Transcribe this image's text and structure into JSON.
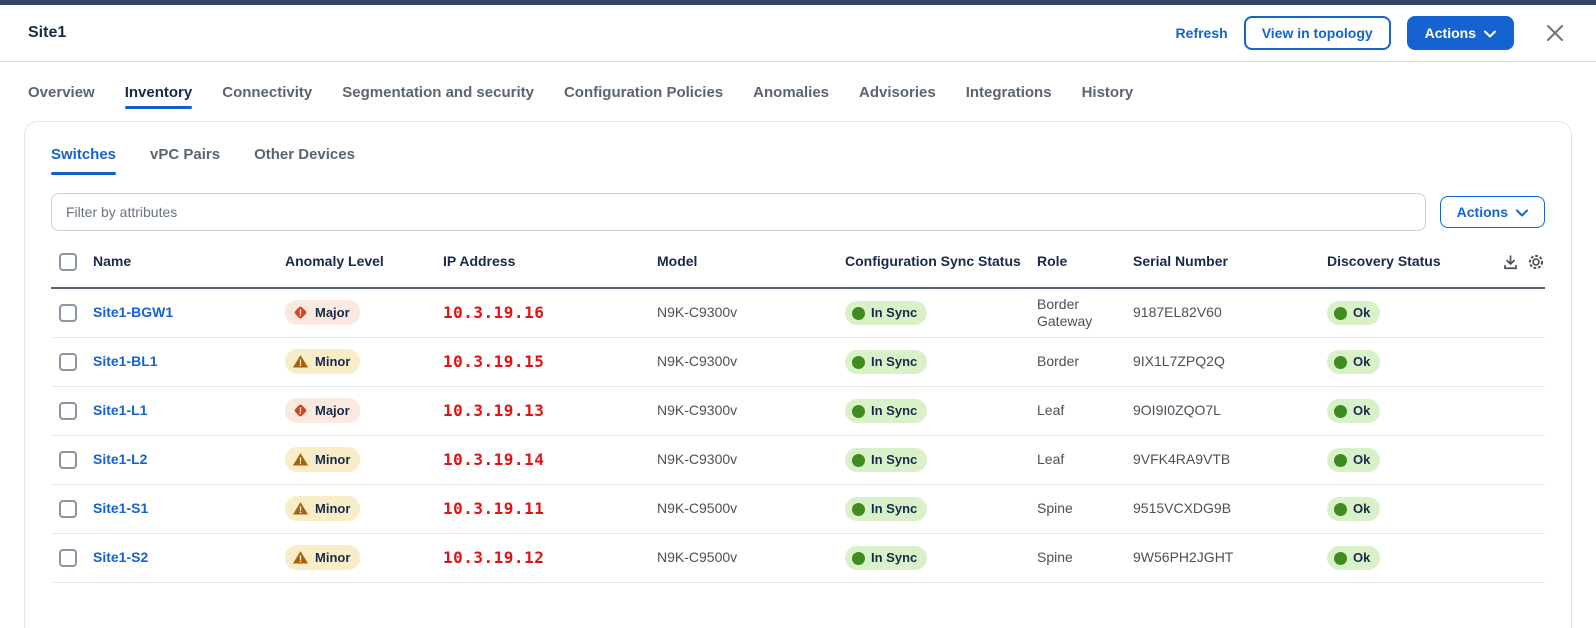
{
  "header": {
    "title": "Site1",
    "refresh_label": "Refresh",
    "view_topology_label": "View in topology",
    "actions_label": "Actions"
  },
  "tabs": [
    {
      "label": "Overview",
      "active": false
    },
    {
      "label": "Inventory",
      "active": true
    },
    {
      "label": "Connectivity",
      "active": false
    },
    {
      "label": "Segmentation and security",
      "active": false
    },
    {
      "label": "Configuration Policies",
      "active": false
    },
    {
      "label": "Anomalies",
      "active": false
    },
    {
      "label": "Advisories",
      "active": false
    },
    {
      "label": "Integrations",
      "active": false
    },
    {
      "label": "History",
      "active": false
    }
  ],
  "subtabs": [
    {
      "label": "Switches",
      "active": true
    },
    {
      "label": "vPC Pairs",
      "active": false
    },
    {
      "label": "Other Devices",
      "active": false
    }
  ],
  "filter": {
    "placeholder": "Filter by attributes",
    "actions_label": "Actions"
  },
  "table": {
    "columns": [
      "Name",
      "Anomaly Level",
      "IP Address",
      "Model",
      "Configuration Sync Status",
      "Role",
      "Serial Number",
      "Discovery Status"
    ],
    "rows": [
      {
        "name": "Site1-BGW1",
        "anomaly": "Major",
        "anomaly_variant": "major",
        "ip": "10.3.19.16",
        "model": "N9K-C9300v",
        "sync": "In Sync",
        "role": "Border Gateway",
        "serial": "9187EL82V60",
        "discovery": "Ok"
      },
      {
        "name": "Site1-BL1",
        "anomaly": "Minor",
        "anomaly_variant": "minor",
        "ip": "10.3.19.15",
        "model": "N9K-C9300v",
        "sync": "In Sync",
        "role": "Border",
        "serial": "9IX1L7ZPQ2Q",
        "discovery": "Ok"
      },
      {
        "name": "Site1-L1",
        "anomaly": "Major",
        "anomaly_variant": "major",
        "ip": "10.3.19.13",
        "model": "N9K-C9300v",
        "sync": "In Sync",
        "role": "Leaf",
        "serial": "9OI9I0ZQO7L",
        "discovery": "Ok"
      },
      {
        "name": "Site1-L2",
        "anomaly": "Minor",
        "anomaly_variant": "minor",
        "ip": "10.3.19.14",
        "model": "N9K-C9300v",
        "sync": "In Sync",
        "role": "Leaf",
        "serial": "9VFK4RA9VTB",
        "discovery": "Ok"
      },
      {
        "name": "Site1-S1",
        "anomaly": "Minor",
        "anomaly_variant": "minor",
        "ip": "10.3.19.11",
        "model": "N9K-C9500v",
        "sync": "In Sync",
        "role": "Spine",
        "serial": "9515VCXDG9B",
        "discovery": "Ok"
      },
      {
        "name": "Site1-S2",
        "anomaly": "Minor",
        "anomaly_variant": "minor",
        "ip": "10.3.19.12",
        "model": "N9K-C9500v",
        "sync": "In Sync",
        "role": "Spine",
        "serial": "9W56PH2JGHT",
        "discovery": "Ok"
      }
    ]
  },
  "colors": {
    "accent_blue": "#1463d0",
    "topbar_navy": "#35455f",
    "ip_red": "#e31111",
    "major_badge_bg": "#fbe8de",
    "major_icon": "#d0481f",
    "minor_badge_bg": "#f8edc6",
    "minor_icon": "#a96209",
    "green_badge_bg": "#d9f1c8",
    "green_dot": "#3e8b20"
  }
}
